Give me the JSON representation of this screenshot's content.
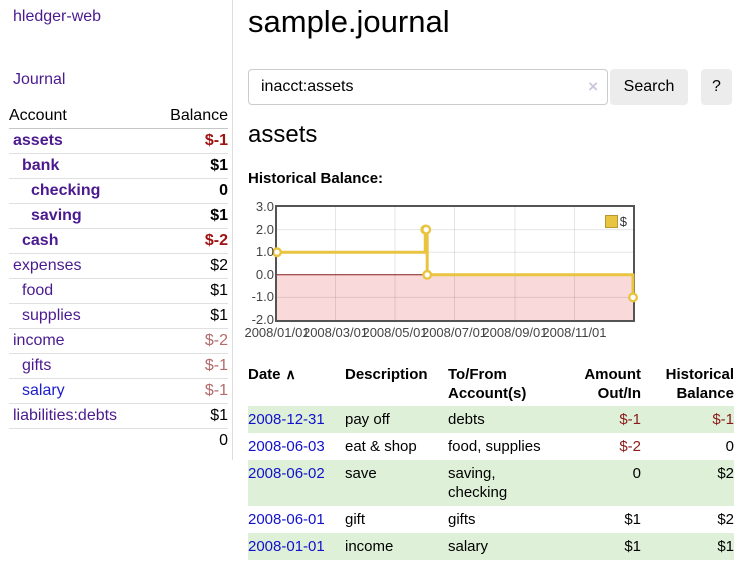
{
  "colors": {
    "link_purple": "#4b1a8f",
    "link_blue": "#1d1ccd",
    "negative_strong": "#a01212",
    "negative_muted": "#b36a6a",
    "table_negative": "#8b1a1a",
    "row_stripe_green": "#dff0d8",
    "chart_line": "#e9c440",
    "chart_negative_fill": "#f9d9d9",
    "chart_zero_line": "#8b1a1a"
  },
  "sidebar": {
    "app_title": "hledger-web",
    "journal_link": "Journal",
    "accounts_table": {
      "headers": {
        "account": "Account",
        "balance": "Balance"
      },
      "rows": [
        {
          "name": "assets",
          "balance": "$-1",
          "level": 1,
          "bold": true,
          "balance_color": "negative-strong"
        },
        {
          "name": "bank",
          "balance": "$1",
          "level": 2,
          "bold": true,
          "balance_color": "normal"
        },
        {
          "name": "checking",
          "balance": "0",
          "level": 3,
          "bold": true,
          "balance_color": "normal"
        },
        {
          "name": "saving",
          "balance": "$1",
          "level": 3,
          "bold": true,
          "balance_color": "normal"
        },
        {
          "name": "cash",
          "balance": "$-2",
          "level": 2,
          "bold": true,
          "balance_color": "negative-strong"
        },
        {
          "name": "expenses",
          "balance": "$2",
          "level": 1,
          "bold": false,
          "balance_color": "normal"
        },
        {
          "name": "food",
          "balance": "$1",
          "level": 2,
          "bold": false,
          "balance_color": "normal"
        },
        {
          "name": "supplies",
          "balance": "$1",
          "level": 2,
          "bold": false,
          "balance_color": "normal"
        },
        {
          "name": "income",
          "balance": "$-2",
          "level": 1,
          "bold": false,
          "balance_color": "negative-muted"
        },
        {
          "name": "gifts",
          "balance": "$-1",
          "level": 2,
          "bold": false,
          "balance_color": "negative-muted"
        },
        {
          "name": "salary",
          "balance": "$-1",
          "level": 2,
          "bold": false,
          "balance_color": "negative-muted",
          "link_blue": true
        },
        {
          "name": "liabilities:debts",
          "balance": "$1",
          "level": 1,
          "bold": false,
          "balance_color": "normal"
        }
      ],
      "total": "0"
    }
  },
  "main": {
    "title": "sample.journal",
    "search": {
      "value": "inacct:assets",
      "clear_icon": "×",
      "button_label": "Search",
      "help_label": "?"
    },
    "account_heading": "assets",
    "chart_label": "Historical Balance:"
  },
  "chart_data": {
    "type": "line",
    "step": true,
    "title": "Historical Balance",
    "series": [
      {
        "name": "$",
        "points": [
          [
            "2008-01-01",
            1
          ],
          [
            "2008-06-01",
            2
          ],
          [
            "2008-06-02",
            2
          ],
          [
            "2008-06-03",
            0
          ],
          [
            "2008-12-31",
            -1
          ]
        ]
      }
    ],
    "x_range": [
      "2008-01-01",
      "2008-12-31"
    ],
    "ylim": [
      -2,
      3
    ],
    "y_ticks": [
      "3.0",
      "2.0",
      "1.0",
      "0.0",
      "-1.0",
      "-2.0"
    ],
    "x_ticks": [
      "2008/01/01",
      "2008/03/01",
      "2008/05/01",
      "2008/07/01",
      "2008/09/01",
      "2008/11/01"
    ],
    "legend": {
      "label": "$",
      "position": "top-right"
    },
    "grid": true
  },
  "register_table": {
    "headers": {
      "date": "Date",
      "sort_icon": "∧",
      "description": "Description",
      "accounts": "To/From Account(s)",
      "amount": "Amount Out/In",
      "balance": "Historical Balance"
    },
    "rows": [
      {
        "date": "2008-12-31",
        "description": "pay off",
        "accounts": "debts",
        "amount": "$-1",
        "balance": "$-1",
        "amount_neg": true,
        "balance_neg": true
      },
      {
        "date": "2008-06-03",
        "description": "eat & shop",
        "accounts": "food, supplies",
        "amount": "$-2",
        "balance": "0",
        "amount_neg": true,
        "balance_neg": false
      },
      {
        "date": "2008-06-02",
        "description": "save",
        "accounts": "saving, checking",
        "amount": "0",
        "balance": "$2",
        "amount_neg": false,
        "balance_neg": false
      },
      {
        "date": "2008-06-01",
        "description": "gift",
        "accounts": "gifts",
        "amount": "$1",
        "balance": "$2",
        "amount_neg": false,
        "balance_neg": false
      },
      {
        "date": "2008-01-01",
        "description": "income",
        "accounts": "salary",
        "amount": "$1",
        "balance": "$1",
        "amount_neg": false,
        "balance_neg": false
      }
    ]
  }
}
